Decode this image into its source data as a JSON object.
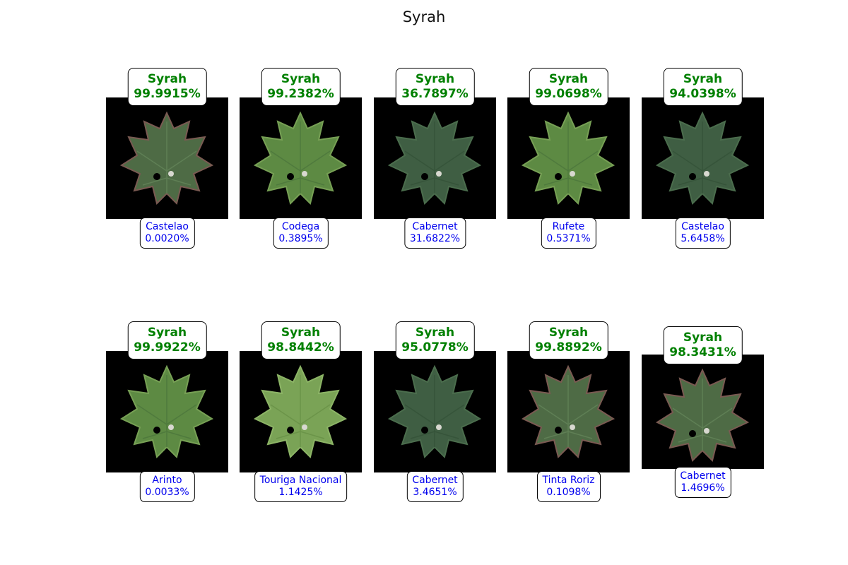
{
  "title": "Syrah",
  "colors": {
    "primary_label": "#008000",
    "secondary_label": "#0000ee",
    "image_background": "#000000"
  },
  "samples": [
    {
      "predicted": "Syrah",
      "predicted_prob": "99.9915%",
      "second": "Castelao",
      "second_prob": "0.0020%",
      "leaf_tone": "reddish"
    },
    {
      "predicted": "Syrah",
      "predicted_prob": "99.2382%",
      "second": "Codega",
      "second_prob": "0.3895%",
      "leaf_tone": "green"
    },
    {
      "predicted": "Syrah",
      "predicted_prob": "36.7897%",
      "second": "Cabernet",
      "second_prob": "31.6822%",
      "leaf_tone": "dark"
    },
    {
      "predicted": "Syrah",
      "predicted_prob": "99.0698%",
      "second": "Rufete",
      "second_prob": "0.5371%",
      "leaf_tone": "green"
    },
    {
      "predicted": "Syrah",
      "predicted_prob": "94.0398%",
      "second": "Castelao",
      "second_prob": "5.6458%",
      "leaf_tone": "dark"
    },
    {
      "predicted": "Syrah",
      "predicted_prob": "99.9922%",
      "second": "Arinto",
      "second_prob": "0.0033%",
      "leaf_tone": "green"
    },
    {
      "predicted": "Syrah",
      "predicted_prob": "98.8442%",
      "second": "Touriga Nacional",
      "second_prob": "1.1425%",
      "leaf_tone": "light"
    },
    {
      "predicted": "Syrah",
      "predicted_prob": "95.0778%",
      "second": "Cabernet",
      "second_prob": "3.4651%",
      "leaf_tone": "dark"
    },
    {
      "predicted": "Syrah",
      "predicted_prob": "99.8892%",
      "second": "Tinta Roriz",
      "second_prob": "0.1098%",
      "leaf_tone": "reddish"
    },
    {
      "predicted": "Syrah",
      "predicted_prob": "98.3431%",
      "second": "Cabernet",
      "second_prob": "1.4696%",
      "leaf_tone": "reddish"
    }
  ]
}
